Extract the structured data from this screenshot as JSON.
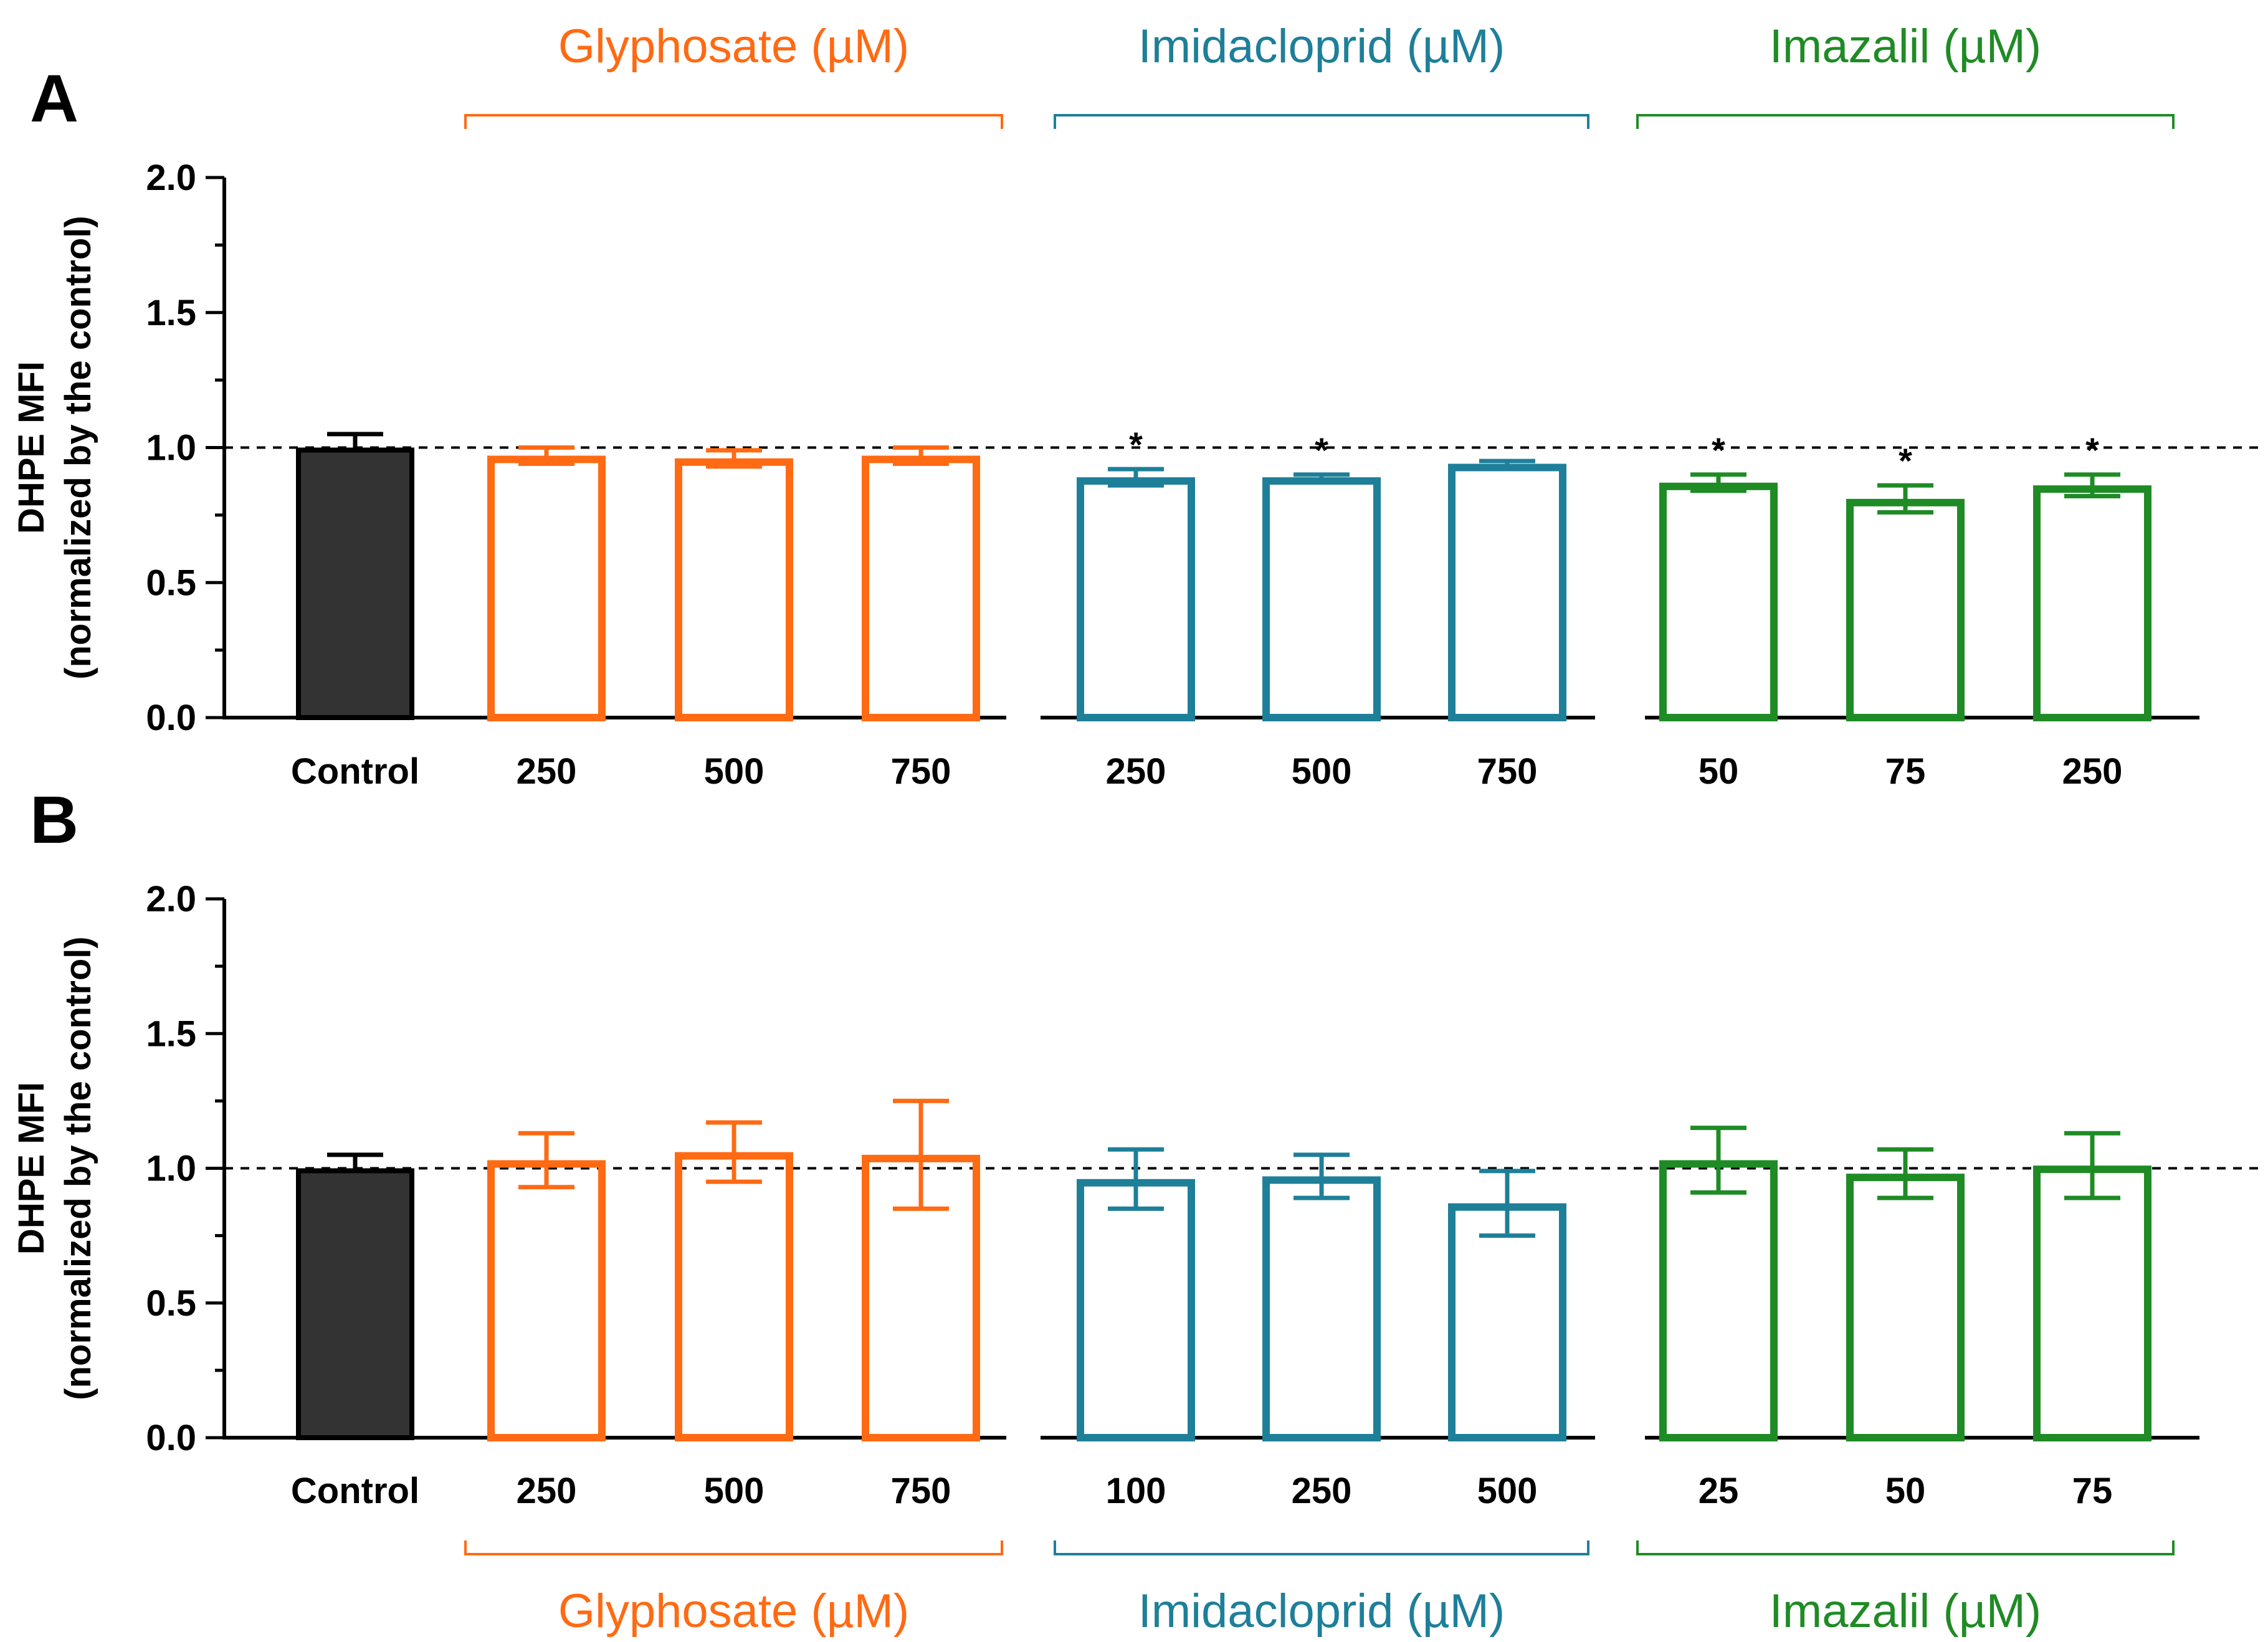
{
  "colors": {
    "control": "#333333",
    "glyphosate": "#FF6A13",
    "imidacloprid": "#1E7F99",
    "imazalil": "#1F8B25"
  },
  "chart_data": [
    {
      "panel": "A",
      "type": "bar",
      "ylabel_line1": "DHPE MFI",
      "ylabel_line2": "(normalized by the control)",
      "ylim": [
        0,
        2.0
      ],
      "yticks": [
        "0.0",
        "0.5",
        "1.0",
        "1.5",
        "2.0"
      ],
      "reference_line": 1.0,
      "group_label_position": "top",
      "groups": [
        {
          "key": "control",
          "label": "",
          "bars": [
            {
              "category": "Control",
              "value": 1.0,
              "error": 0.05,
              "sig": ""
            }
          ]
        },
        {
          "key": "glyphosate",
          "label": "Glyphosate (µM)",
          "bars": [
            {
              "category": "250",
              "value": 0.97,
              "error": 0.03,
              "sig": ""
            },
            {
              "category": "500",
              "value": 0.96,
              "error": 0.03,
              "sig": ""
            },
            {
              "category": "750",
              "value": 0.97,
              "error": 0.03,
              "sig": ""
            }
          ]
        },
        {
          "key": "imidacloprid",
          "label": "Imidacloprid (µM)",
          "bars": [
            {
              "category": "250",
              "value": 0.89,
              "error": 0.03,
              "sig": "*"
            },
            {
              "category": "500",
              "value": 0.89,
              "error": 0.01,
              "sig": "*"
            },
            {
              "category": "750",
              "value": 0.94,
              "error": 0.01,
              "sig": ""
            }
          ]
        },
        {
          "key": "imazalil",
          "label": "Imazalil (µM)",
          "bars": [
            {
              "category": "50",
              "value": 0.87,
              "error": 0.03,
              "sig": "*"
            },
            {
              "category": "75",
              "value": 0.81,
              "error": 0.05,
              "sig": "*"
            },
            {
              "category": "250",
              "value": 0.86,
              "error": 0.04,
              "sig": "*"
            }
          ]
        }
      ]
    },
    {
      "panel": "B",
      "type": "bar",
      "ylabel_line1": "DHPE MFI",
      "ylabel_line2": "(normalized by the control)",
      "ylim": [
        0,
        2.0
      ],
      "yticks": [
        "0.0",
        "0.5",
        "1.0",
        "1.5",
        "2.0"
      ],
      "reference_line": 1.0,
      "group_label_position": "bottom",
      "groups": [
        {
          "key": "control",
          "label": "",
          "bars": [
            {
              "category": "Control",
              "value": 1.0,
              "error": 0.05,
              "sig": ""
            }
          ]
        },
        {
          "key": "glyphosate",
          "label": "Glyphosate (µM)",
          "bars": [
            {
              "category": "250",
              "value": 1.03,
              "error": 0.1,
              "sig": ""
            },
            {
              "category": "500",
              "value": 1.06,
              "error": 0.11,
              "sig": ""
            },
            {
              "category": "750",
              "value": 1.05,
              "error": 0.2,
              "sig": ""
            }
          ]
        },
        {
          "key": "imidacloprid",
          "label": "Imidacloprid (µM)",
          "bars": [
            {
              "category": "100",
              "value": 0.96,
              "error": 0.11,
              "sig": ""
            },
            {
              "category": "250",
              "value": 0.97,
              "error": 0.08,
              "sig": ""
            },
            {
              "category": "500",
              "value": 0.87,
              "error": 0.12,
              "sig": ""
            }
          ]
        },
        {
          "key": "imazalil",
          "label": "Imazalil (µM)",
          "bars": [
            {
              "category": "25",
              "value": 1.03,
              "error": 0.12,
              "sig": ""
            },
            {
              "category": "50",
              "value": 0.98,
              "error": 0.09,
              "sig": ""
            },
            {
              "category": "75",
              "value": 1.01,
              "error": 0.12,
              "sig": ""
            }
          ]
        }
      ]
    }
  ]
}
